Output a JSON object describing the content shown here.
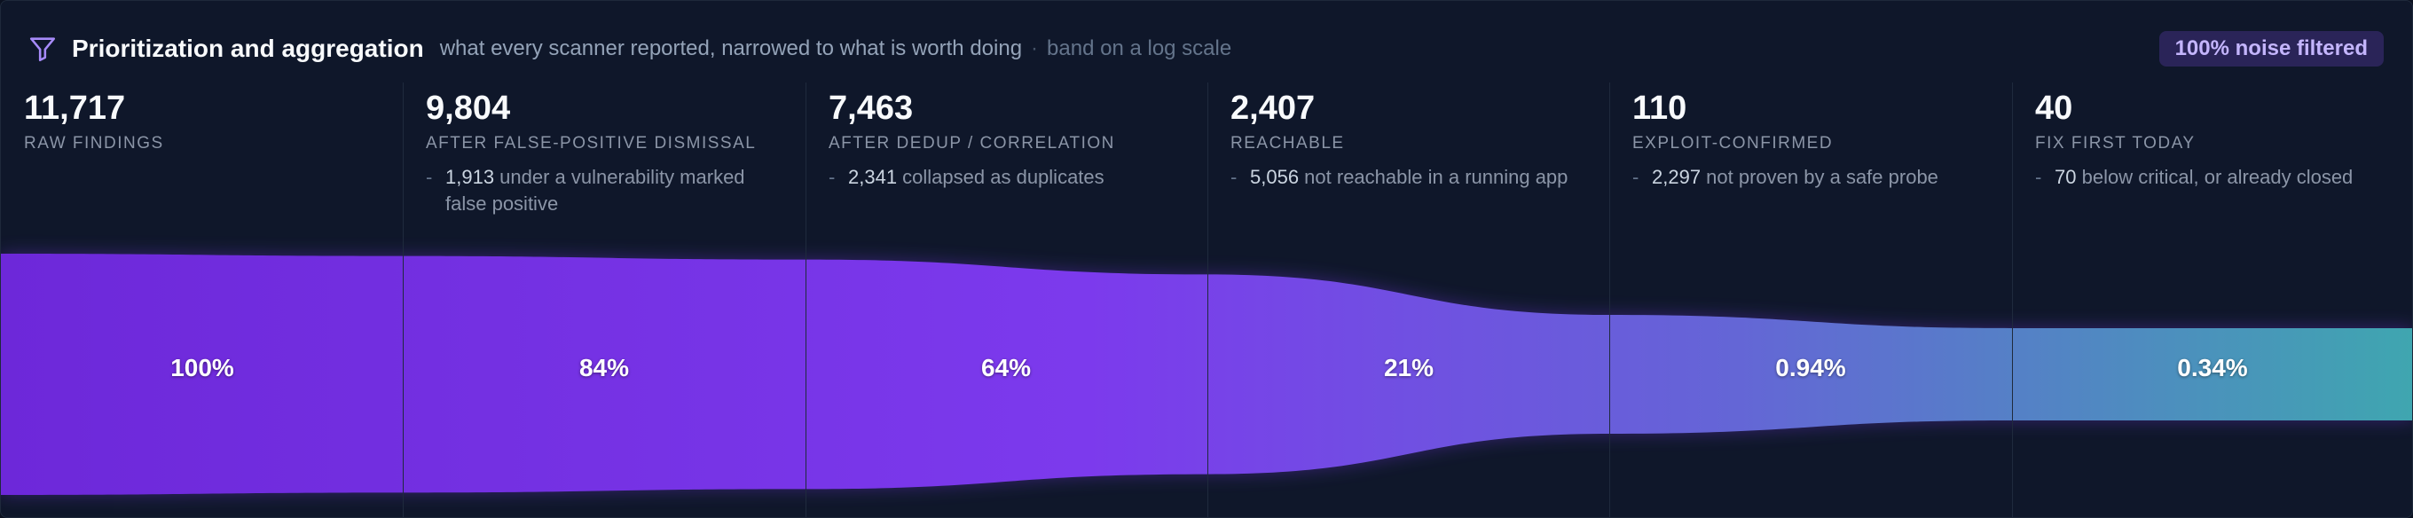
{
  "header": {
    "title": "Prioritization and aggregation",
    "subtitle": "what every scanner reported, narrowed to what is worth doing",
    "separator": "·",
    "scale_note": "band on a log scale",
    "badge": "100% noise filtered",
    "icon": "funnel-icon"
  },
  "colors": {
    "background": "#0f172a",
    "band_start": "#6d28d9",
    "band_mid": "#7c3aed",
    "band_end": "#3fa6b0",
    "badge_bg": "#2a2458",
    "badge_text": "#c4b5fd"
  },
  "chart_data": {
    "type": "area",
    "scale": "log",
    "title": "Prioritization and aggregation",
    "stages": [
      {
        "count": "11,717",
        "value": 11717,
        "label": "RAW FINDINGS",
        "percent": "100%",
        "note_num": "",
        "note_text": ""
      },
      {
        "count": "9,804",
        "value": 9804,
        "label": "AFTER FALSE-POSITIVE DISMISSAL",
        "percent": "84%",
        "note_num": "1,913",
        "note_text": "under a vulnerability marked false positive"
      },
      {
        "count": "7,463",
        "value": 7463,
        "label": "AFTER DEDUP / CORRELATION",
        "percent": "64%",
        "note_num": "2,341",
        "note_text": "collapsed as duplicates"
      },
      {
        "count": "2,407",
        "value": 2407,
        "label": "REACHABLE",
        "percent": "21%",
        "note_num": "5,056",
        "note_text": "not reachable in a running app"
      },
      {
        "count": "110",
        "value": 110,
        "label": "EXPLOIT-CONFIRMED",
        "percent": "0.94%",
        "note_num": "2,297",
        "note_text": "not proven by a safe probe"
      },
      {
        "count": "40",
        "value": 40,
        "label": "FIX FIRST TODAY",
        "percent": "0.34%",
        "note_num": "70",
        "note_text": "below critical, or already closed"
      }
    ]
  }
}
